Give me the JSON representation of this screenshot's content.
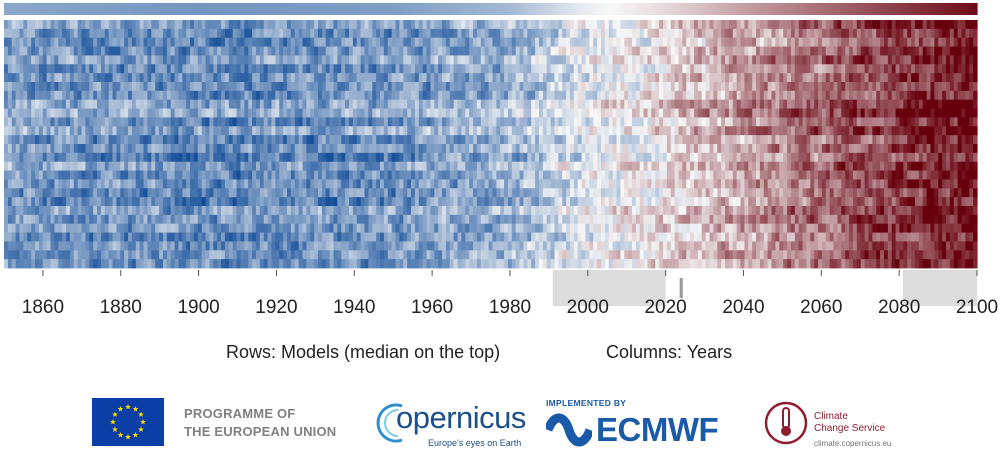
{
  "chart_data": {
    "type": "heatmap",
    "x_start": 1850,
    "x_end": 2100,
    "x_ticks": [
      1860,
      1880,
      1900,
      1920,
      1940,
      1960,
      1980,
      2000,
      2020,
      2040,
      2060,
      2080,
      2100
    ],
    "row_count": 28,
    "top_row": "median",
    "colormap": {
      "cold": "#084594",
      "neutral": "#f7f7f7",
      "warm": "#67000d"
    },
    "anomaly_trend": [
      {
        "year": 1850,
        "value": -0.45
      },
      {
        "year": 1900,
        "value": -0.55
      },
      {
        "year": 1950,
        "value": -0.5
      },
      {
        "year": 1980,
        "value": -0.35
      },
      {
        "year": 2000,
        "value": -0.05
      },
      {
        "year": 2020,
        "value": 0.12
      },
      {
        "year": 2040,
        "value": 0.35
      },
      {
        "year": 2060,
        "value": 0.55
      },
      {
        "year": 2080,
        "value": 0.75
      },
      {
        "year": 2100,
        "value": 0.95
      }
    ],
    "shaded_periods": [
      [
        1991,
        2020
      ],
      [
        2081,
        2100
      ]
    ],
    "current_year_marker": 2024
  },
  "caption": {
    "rows": "Rows: Models (median on the top)",
    "columns": "Columns: Years"
  },
  "logos": {
    "eu_line1": "PROGRAMME OF",
    "eu_line2": "THE EUROPEAN UNION",
    "copernicus": "opernicus",
    "copernicus_tagline": "Europe's eyes on Earth",
    "ecmwf_implemented": "IMPLEMENTED BY",
    "ecmwf": "ECMWF",
    "c3s_line1": "Climate",
    "c3s_line2": "Change Service",
    "c3s_url": "climate.copernicus.eu"
  }
}
